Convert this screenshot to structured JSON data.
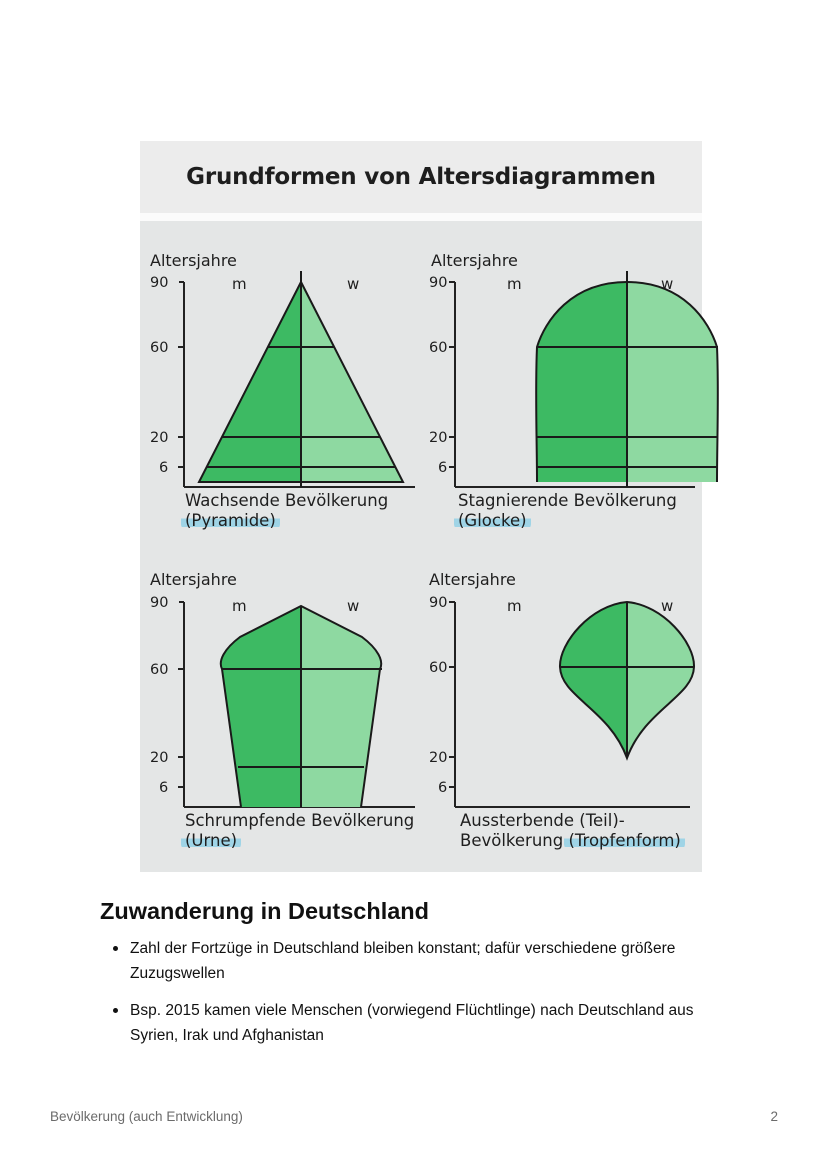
{
  "figure": {
    "title": "Grundformen von Altersdiagrammen",
    "panels": [
      {
        "y_label": "Altersjahre",
        "ticks": [
          "90",
          "60",
          "20",
          "6"
        ],
        "male_label": "m",
        "female_label": "w",
        "caption_line1": "Wachsende Bevölkerung",
        "caption_line2": "(Pyramide)"
      },
      {
        "y_label": "Altersjahre",
        "ticks": [
          "90",
          "60",
          "20",
          "6"
        ],
        "male_label": "m",
        "female_label": "w",
        "caption_line1": "Stagnierende Bevölkerung",
        "caption_line2": "(Glocke)"
      },
      {
        "y_label": "Altersjahre",
        "ticks": [
          "90",
          "60",
          "20",
          "6"
        ],
        "male_label": "m",
        "female_label": "w",
        "caption_line1": "Schrumpfende Bevölkerung",
        "caption_line2": "(Urne)"
      },
      {
        "y_label": "Altersjahre",
        "ticks": [
          "90",
          "60",
          "20",
          "6"
        ],
        "male_label": "m",
        "female_label": "w",
        "caption_line1": "Aussterbende (Teil)-",
        "caption_line2_a": "Bevölkerung ",
        "caption_line2_b": "(Tropfenform)"
      }
    ],
    "colors": {
      "male": "#3dba63",
      "female": "#8ed9a1",
      "highlight": "#9fd4e6"
    }
  },
  "section": {
    "heading": "Zuwanderung in Deutschland",
    "bullets": [
      "Zahl der Fortzüge in Deutschland bleiben konstant; dafür verschiedene größere Zuzugswellen",
      "Bsp. 2015 kamen viele Menschen (vorwiegend Flüchtlinge) nach Deutschland aus Syrien, Irak und Afghanistan"
    ]
  },
  "footer": {
    "left": "Bevölkerung (auch Entwicklung)",
    "page_number": "2"
  }
}
